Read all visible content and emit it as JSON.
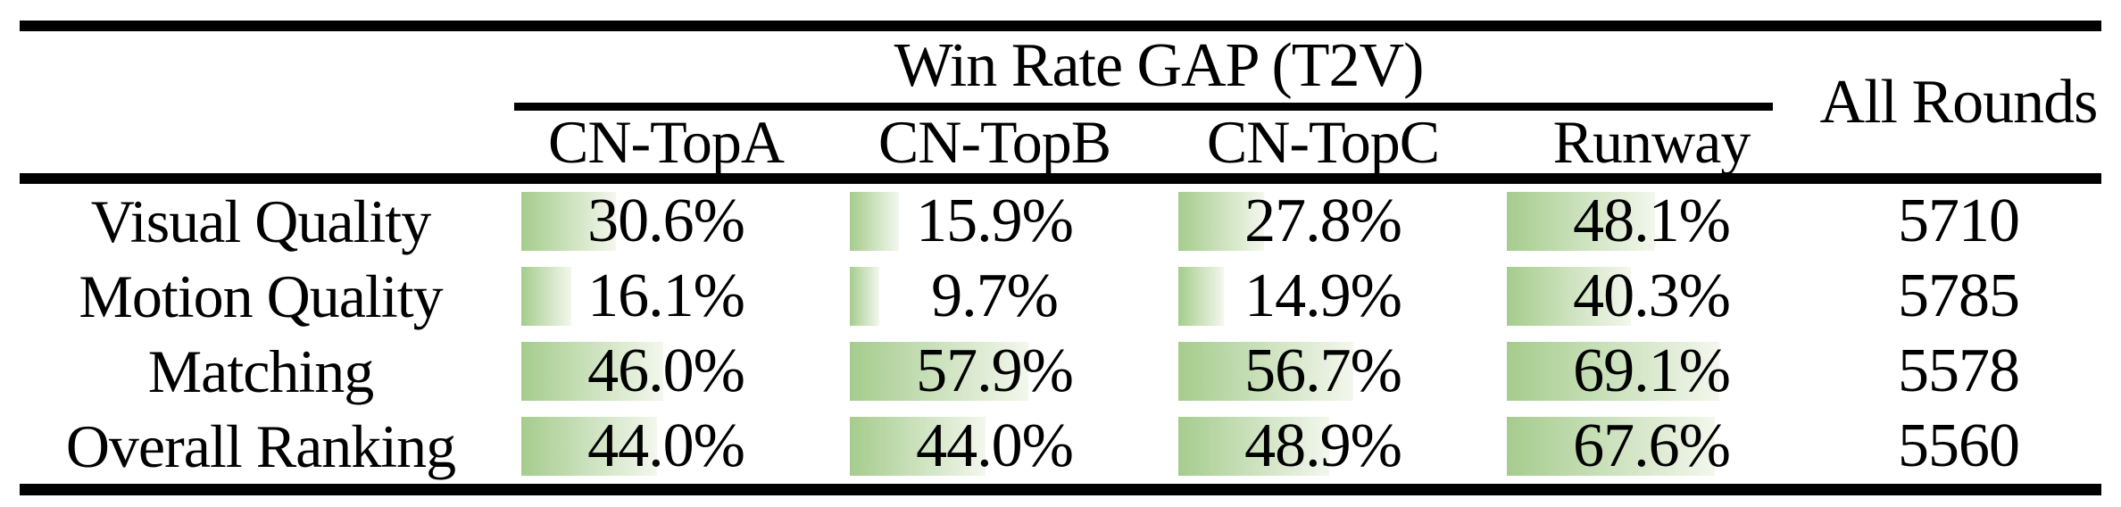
{
  "table": {
    "group_header": "Win Rate GAP (T2V)",
    "all_rounds_header": "All Rounds",
    "win_rate_columns": [
      "CN-TopA",
      "CN-TopB",
      "CN-TopC",
      "Runway"
    ],
    "rows": [
      {
        "label": "Visual Quality",
        "values": [
          30.6,
          15.9,
          27.8,
          48.1
        ],
        "display_values": [
          "30.6%",
          "15.9%",
          "27.8%",
          "48.1%"
        ],
        "all_rounds": "5710"
      },
      {
        "label": "Motion Quality",
        "values": [
          16.1,
          9.7,
          14.9,
          40.3
        ],
        "display_values": [
          "16.1%",
          "9.7%",
          "14.9%",
          "40.3%"
        ],
        "all_rounds": "5785"
      },
      {
        "label": "Matching",
        "values": [
          46.0,
          57.9,
          56.7,
          69.1
        ],
        "display_values": [
          "46.0%",
          "57.9%",
          "56.7%",
          "69.1%"
        ],
        "all_rounds": "5578"
      },
      {
        "label": "Overall Ranking",
        "values": [
          44.0,
          44.0,
          48.9,
          67.6
        ],
        "display_values": [
          "44.0%",
          "44.0%",
          "48.9%",
          "67.6%"
        ],
        "all_rounds": "5560"
      }
    ]
  },
  "colors": {
    "bar_gradient_start": "#a5cc8d",
    "bar_gradient_end": "#f3f7ed",
    "rule_color": "#000000",
    "background": "#ffffff",
    "text": "#000000"
  },
  "chart_data": {
    "type": "table",
    "title": "Win Rate GAP (T2V)",
    "columns": [
      "",
      "CN-TopA",
      "CN-TopB",
      "CN-TopC",
      "Runway",
      "All Rounds"
    ],
    "rows": [
      [
        "Visual Quality",
        "30.6%",
        "15.9%",
        "27.8%",
        "48.1%",
        "5710"
      ],
      [
        "Motion Quality",
        "16.1%",
        "9.7%",
        "14.9%",
        "40.3%",
        "5785"
      ],
      [
        "Matching",
        "46.0%",
        "57.9%",
        "56.7%",
        "69.1%",
        "5578"
      ],
      [
        "Overall Ranking",
        "44.0%",
        "44.0%",
        "48.9%",
        "67.6%",
        "5560"
      ]
    ],
    "bar_values_percent": [
      [
        30.6,
        15.9,
        27.8,
        48.1
      ],
      [
        16.1,
        9.7,
        14.9,
        40.3
      ],
      [
        46.0,
        57.9,
        56.7,
        69.1
      ],
      [
        44.0,
        44.0,
        48.9,
        67.6
      ]
    ],
    "layout_hints": "in-cell horizontal green gradient bars, length = percentage of column width; double thick rules top/bottom, thick rule under header, thin rule under spanning group header"
  }
}
